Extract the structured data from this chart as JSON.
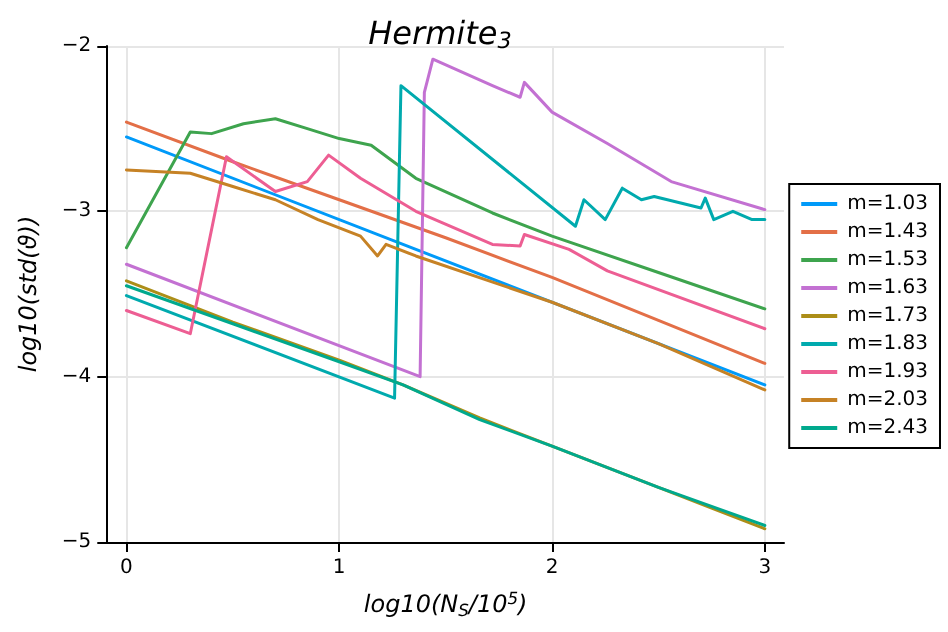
{
  "chart_data": {
    "type": "line",
    "title": "Hermite$_{3}$",
    "xlabel": "log10(N$_{S}$/10$^{5}$)",
    "ylabel": "log10(std(ϑ))",
    "xlim": [
      -0.09,
      3.09
    ],
    "ylim": [
      -5,
      -2
    ],
    "xticks": [
      0,
      1,
      2,
      3
    ],
    "yticks": [
      -5,
      -4,
      -3,
      -2
    ],
    "grid": true,
    "legend": "right",
    "marker": "none",
    "line_style": "solid",
    "series": [
      {
        "name": "m=1.03",
        "color": "#009af9",
        "x": [
          0,
          3
        ],
        "values": [
          -2.55,
          -4.05
        ]
      },
      {
        "name": "m=1.43",
        "color": "#e36f47",
        "x": [
          0,
          0.5,
          1,
          1.5,
          2,
          2.5,
          3
        ],
        "values": [
          -2.46,
          -2.7,
          -2.93,
          -3.16,
          -3.4,
          -3.66,
          -3.92
        ]
      },
      {
        "name": "m=1.53",
        "color": "#3ea44e",
        "x": [
          0,
          0.3,
          0.4,
          0.55,
          0.7,
          0.85,
          1,
          1.15,
          1.36,
          1.72,
          2,
          2.5,
          3
        ],
        "values": [
          -3.22,
          -2.52,
          -2.53,
          -2.47,
          -2.44,
          -2.5,
          -2.56,
          -2.6,
          -2.8,
          -3.01,
          -3.15,
          -3.37,
          -3.59
        ]
      },
      {
        "name": "m=1.63",
        "color": "#c371d2",
        "x": [
          0,
          1.38,
          1.4,
          1.44,
          1.72,
          1.85,
          1.87,
          2,
          2.26,
          2.56,
          3
        ],
        "values": [
          -3.32,
          -4.0,
          -2.28,
          -2.08,
          -2.24,
          -2.31,
          -2.22,
          -2.4,
          -2.59,
          -2.82,
          -2.99
        ]
      },
      {
        "name": "m=1.73",
        "color": "#ac8e18",
        "x": [
          0,
          0.5,
          1,
          1.3,
          1.66,
          2,
          2.5,
          3
        ],
        "values": [
          -3.42,
          -3.67,
          -3.9,
          -4.05,
          -4.25,
          -4.42,
          -4.67,
          -4.92
        ]
      },
      {
        "name": "m=1.83",
        "color": "#00aaae",
        "x": [
          0,
          1.26,
          1.29,
          2.11,
          2.15,
          2.25,
          2.33,
          2.42,
          2.48,
          2.7,
          2.72,
          2.76,
          2.85,
          2.94,
          3
        ],
        "values": [
          -3.51,
          -4.13,
          -2.24,
          -3.09,
          -2.93,
          -3.05,
          -2.86,
          -2.93,
          -2.91,
          -2.98,
          -2.92,
          -3.05,
          -3.0,
          -3.05,
          -3.05
        ]
      },
      {
        "name": "m=1.93",
        "color": "#ed5e93",
        "x": [
          0,
          0.3,
          0.47,
          0.7,
          0.85,
          0.95,
          1.1,
          1.36,
          1.72,
          1.85,
          1.87,
          2.08,
          2.26,
          3
        ],
        "values": [
          -3.6,
          -3.74,
          -2.67,
          -2.88,
          -2.82,
          -2.66,
          -2.8,
          -3.0,
          -3.2,
          -3.21,
          -3.14,
          -3.23,
          -3.36,
          -3.71
        ]
      },
      {
        "name": "m=2.03",
        "color": "#c68225",
        "x": [
          0,
          0.3,
          0.5,
          0.7,
          0.9,
          1.1,
          1.18,
          1.22,
          1.36,
          2,
          2.5,
          3
        ],
        "values": [
          -2.75,
          -2.77,
          -2.85,
          -2.93,
          -3.05,
          -3.15,
          -3.27,
          -3.2,
          -3.27,
          -3.55,
          -3.8,
          -4.08
        ]
      },
      {
        "name": "m=2.43",
        "color": "#00a98d",
        "x": [
          0,
          0.5,
          1,
          1.3,
          1.66,
          2,
          2.5,
          3
        ],
        "values": [
          -3.45,
          -3.68,
          -3.91,
          -4.05,
          -4.26,
          -4.42,
          -4.67,
          -4.9
        ]
      }
    ]
  }
}
